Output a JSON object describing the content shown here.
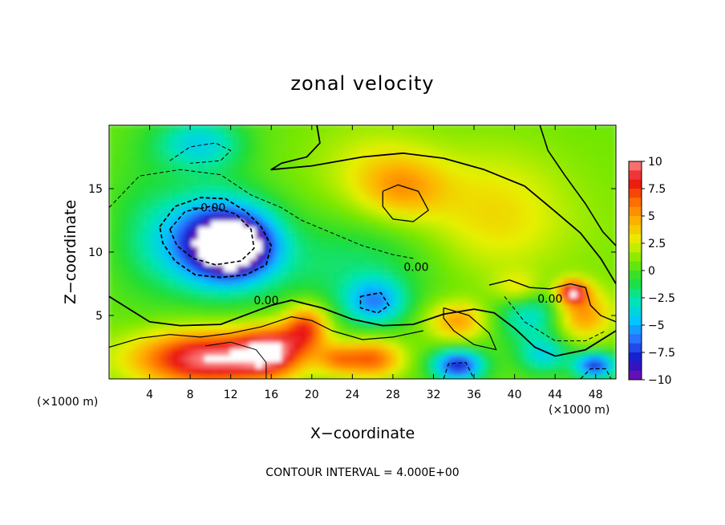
{
  "chart_data": {
    "type": "heatmap",
    "title": "zonal velocity",
    "xlabel": "X−coordinate",
    "ylabel": "Z−coordinate",
    "x_unit_left": "(×1000 m)",
    "x_unit_right": "(×1000 m)",
    "xlim": [
      0,
      50
    ],
    "ylim": [
      0,
      20
    ],
    "x_ticks": [
      4,
      8,
      12,
      16,
      20,
      24,
      28,
      32,
      36,
      40,
      44,
      48
    ],
    "x_tick_labels": [
      "4",
      "8",
      "12",
      "16",
      "20",
      "24",
      "28",
      "32",
      "36",
      "40",
      "44",
      "48"
    ],
    "y_ticks": [
      5,
      10,
      15
    ],
    "y_tick_labels": [
      "5",
      "10",
      "15"
    ],
    "colorbar": {
      "min": -10,
      "max": 10,
      "ticks": [
        10,
        7.5,
        5,
        2.5,
        0,
        -2.5,
        -5,
        -7.5,
        -10
      ],
      "tick_labels": [
        "10",
        "7.5",
        "5",
        "2.5",
        "0",
        "−2.5",
        "−5",
        "−7.5",
        "−10"
      ],
      "colors": [
        "#7a10b0",
        "#1414c8",
        "#2a6eff",
        "#00c8ff",
        "#00e6b0",
        "#22dd33",
        "#7be800",
        "#e6f000",
        "#ffb000",
        "#ff6a00",
        "#e81010",
        "#ff8a8a"
      ],
      "out_of_range_color": "#ffffff"
    },
    "contour_labels": [
      {
        "text": "−0.00",
        "x": 9.8,
        "y": 13.2
      },
      {
        "text": "0.00",
        "x": 15.5,
        "y": 5.9
      },
      {
        "text": "0.00",
        "x": 30.3,
        "y": 8.5
      },
      {
        "text": "0.00",
        "x": 43.5,
        "y": 6.0
      }
    ],
    "contour_interval_text": "CONTOUR INTERVAL = 4.000E+00"
  }
}
